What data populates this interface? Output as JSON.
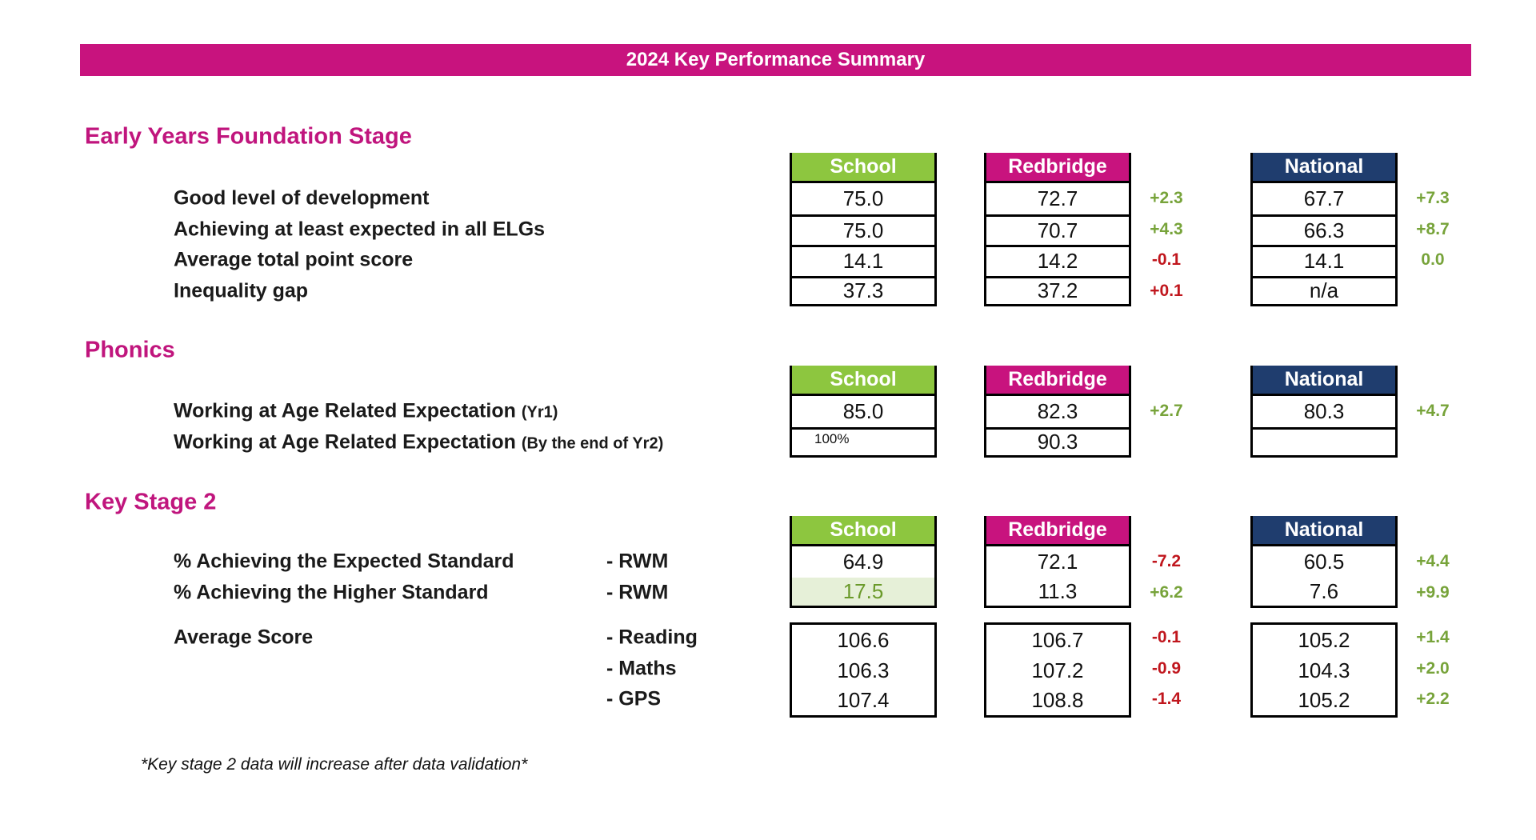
{
  "title": "2024 Key Performance Summary",
  "colors": {
    "school": "#8dc63f",
    "redbridge": "#c8137e",
    "national": "#1f3d6e",
    "good": "#77a33a",
    "bad": "#c0161d",
    "highlight_bg": "#e6f0d8"
  },
  "columns": {
    "school": "School",
    "redbridge": "Redbridge",
    "national": "National"
  },
  "sections": [
    {
      "heading": "Early Years Foundation Stage",
      "groups": [
        {
          "header": true,
          "rows": [
            {
              "label": "Good level of development",
              "school": "75.0",
              "redbridge": "72.7",
              "rb_diff": "+2.3",
              "rb_status": "good",
              "national": "67.7",
              "nat_diff": "+7.3",
              "nat_status": "good"
            },
            {
              "label": "Achieving at least expected in all ELGs",
              "school": "75.0",
              "redbridge": "70.7",
              "rb_diff": "+4.3",
              "rb_status": "good",
              "national": "66.3",
              "nat_diff": "+8.7",
              "nat_status": "good"
            },
            {
              "label": "Average total point score",
              "school": "14.1",
              "redbridge": "14.2",
              "rb_diff": "-0.1",
              "rb_status": "bad",
              "national": "14.1",
              "nat_diff": "0.0",
              "nat_status": "good"
            },
            {
              "label": "Inequality gap",
              "school": "37.3",
              "redbridge": "37.2",
              "rb_diff": "+0.1",
              "rb_status": "bad",
              "national": "n/a",
              "nat_diff": "",
              "nat_status": "good"
            }
          ]
        }
      ]
    },
    {
      "heading": "Phonics",
      "groups": [
        {
          "header": true,
          "rows": [
            {
              "label": "Working at Age Related Expectation",
              "label_suffix": "(Yr1)",
              "school": "85.0",
              "redbridge": "82.3",
              "rb_diff": "+2.7",
              "rb_status": "good",
              "national": "80.3",
              "nat_diff": "+4.7",
              "nat_status": "good"
            },
            {
              "label": "Working at Age Related Expectation",
              "label_suffix": "(By the end of Yr2)",
              "school": "100%",
              "school_small": true,
              "redbridge": "90.3",
              "rb_diff": "",
              "rb_status": "good",
              "national": "",
              "nat_diff": "",
              "nat_status": "good"
            }
          ]
        }
      ]
    },
    {
      "heading": "Key Stage 2",
      "groups": [
        {
          "header": true,
          "nosep": true,
          "rows": [
            {
              "label": "% Achieving the Expected Standard",
              "sublabel": "- RWM",
              "school": "64.9",
              "redbridge": "72.1",
              "rb_diff": "-7.2",
              "rb_status": "bad",
              "national": "60.5",
              "nat_diff": "+4.4",
              "nat_status": "good"
            },
            {
              "label": "% Achieving the Higher Standard",
              "sublabel": "- RWM",
              "school": "17.5",
              "school_highlight": true,
              "redbridge": "11.3",
              "rb_diff": "+6.2",
              "rb_status": "good",
              "national": "7.6",
              "nat_diff": "+9.9",
              "nat_status": "good"
            }
          ]
        },
        {
          "header": false,
          "nosep": true,
          "rows": [
            {
              "label": "Average Score",
              "sublabel": "- Reading",
              "school": "106.6",
              "redbridge": "106.7",
              "rb_diff": "-0.1",
              "rb_status": "bad",
              "national": "105.2",
              "nat_diff": "+1.4",
              "nat_status": "good"
            },
            {
              "label": "",
              "sublabel": "- Maths",
              "school": "106.3",
              "redbridge": "107.2",
              "rb_diff": "-0.9",
              "rb_status": "bad",
              "national": "104.3",
              "nat_diff": "+2.0",
              "nat_status": "good"
            },
            {
              "label": "",
              "sublabel": "- GPS",
              "school": "107.4",
              "redbridge": "108.8",
              "rb_diff": "-1.4",
              "rb_status": "bad",
              "national": "105.2",
              "nat_diff": "+2.2",
              "nat_status": "good"
            }
          ]
        }
      ]
    }
  ],
  "footnote": "*Key stage 2 data will increase after data validation*"
}
